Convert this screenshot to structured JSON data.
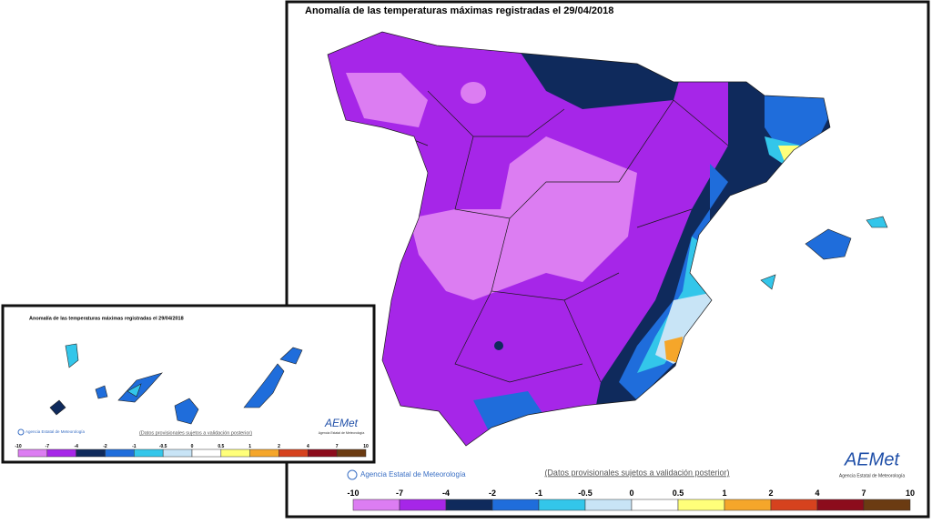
{
  "main": {
    "title": "Anomalía de las temperaturas máximas registradas el 29/04/2018",
    "credit": "Agencia Estatal de Meteorología",
    "note": "(Datos provisionales sujetos a validación posterior)",
    "logo": "AEMet",
    "logo_sub": "Agencia Estatal de Meteorología"
  },
  "inset": {
    "title": "Anomalía de las temperaturas máximas registradas el 29/04/2018",
    "credit": "Agencia Estatal de Meteorología",
    "note": "(Datos provisionales sujetos a validación posterior)",
    "logo": "AEMet",
    "logo_sub": "Agencia Estatal de Meteorología"
  },
  "legend": {
    "ticks": [
      -10,
      -7,
      -4,
      -2,
      -1,
      -0.5,
      0,
      0.5,
      1,
      2,
      4,
      7,
      10
    ],
    "colors": [
      "#dc7df2",
      "#a626e8",
      "#0f2a5c",
      "#1f6ddb",
      "#33c6ea",
      "#c8e4f6",
      "#ffffff",
      "#ffff7a",
      "#f5a62a",
      "#d6421e",
      "#8c0c1c",
      "#6b3b12"
    ]
  }
}
